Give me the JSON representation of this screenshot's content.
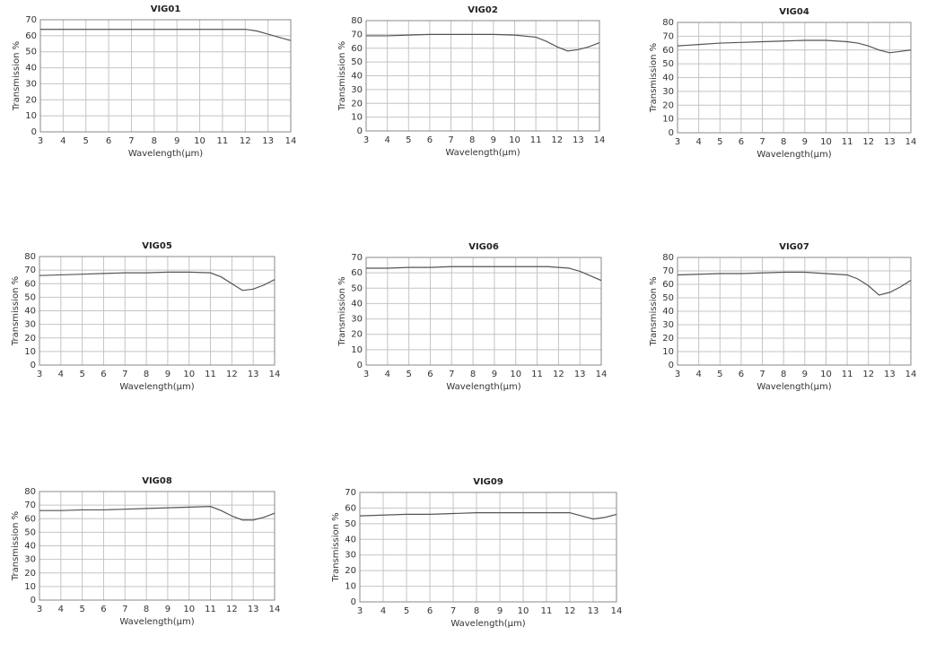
{
  "chart_data": [
    {
      "type": "line",
      "title": "VIG01",
      "xlabel": "Wavelength(μm)",
      "ylabel": "Transmission %",
      "x": [
        3,
        4,
        5,
        6,
        7,
        8,
        9,
        10,
        11,
        11.5,
        12,
        12.5,
        13,
        13.5,
        14
      ],
      "series": [
        {
          "color": "#555555",
          "values": [
            64,
            64,
            64,
            64,
            64,
            64,
            64,
            64,
            64,
            64,
            64,
            63,
            61,
            59,
            57
          ]
        }
      ],
      "xlim": [
        3,
        14
      ],
      "ylim": [
        0,
        70
      ],
      "xticks": [
        3,
        4,
        5,
        6,
        7,
        8,
        9,
        10,
        11,
        12,
        13,
        14
      ],
      "yticks": [
        0,
        10,
        20,
        30,
        40,
        50,
        60,
        70
      ],
      "grid": true
    },
    {
      "type": "line",
      "title": "VIG02",
      "xlabel": "Wavelength(μm)",
      "ylabel": "Transmission %",
      "x": [
        3,
        4,
        5,
        6,
        7,
        8,
        9,
        10,
        11,
        11.5,
        12,
        12.5,
        13,
        13.5,
        14
      ],
      "series": [
        {
          "color": "#555555",
          "values": [
            69,
            69,
            69.5,
            70,
            70,
            70,
            70,
            69.5,
            68,
            65,
            61,
            58,
            59,
            61,
            64
          ]
        }
      ],
      "xlim": [
        3,
        14
      ],
      "ylim": [
        0,
        80
      ],
      "xticks": [
        3,
        4,
        5,
        6,
        7,
        8,
        9,
        10,
        11,
        12,
        13,
        14
      ],
      "yticks": [
        0,
        10,
        20,
        30,
        40,
        50,
        60,
        70,
        80
      ],
      "grid": true
    },
    {
      "type": "line",
      "title": "VIG04",
      "xlabel": "Wavelength(μm)",
      "ylabel": "Transmission %",
      "x": [
        3,
        4,
        5,
        6,
        7,
        8,
        9,
        10,
        11,
        11.5,
        12,
        12.5,
        13,
        13.5,
        14
      ],
      "series": [
        {
          "color": "#555555",
          "values": [
            63,
            64,
            65,
            65.5,
            66,
            66.5,
            67,
            67,
            66,
            65,
            63,
            60,
            58,
            59,
            60
          ]
        }
      ],
      "xlim": [
        3,
        14
      ],
      "ylim": [
        0,
        80
      ],
      "xticks": [
        3,
        4,
        5,
        6,
        7,
        8,
        9,
        10,
        11,
        12,
        13,
        14
      ],
      "yticks": [
        0,
        10,
        20,
        30,
        40,
        50,
        60,
        70,
        80
      ],
      "grid": true
    },
    {
      "type": "line",
      "title": "VIG05",
      "xlabel": "Wavelength(μm)",
      "ylabel": "Transmission %",
      "x": [
        3,
        4,
        5,
        6,
        7,
        8,
        9,
        10,
        11,
        11.5,
        12,
        12.5,
        13,
        13.5,
        14
      ],
      "series": [
        {
          "color": "#555555",
          "values": [
            66,
            66.5,
            67,
            67.5,
            68,
            68,
            68.5,
            68.5,
            68,
            65,
            60,
            55,
            56,
            59,
            63
          ]
        }
      ],
      "xlim": [
        3,
        14
      ],
      "ylim": [
        0,
        80
      ],
      "xticks": [
        3,
        4,
        5,
        6,
        7,
        8,
        9,
        10,
        11,
        12,
        13,
        14
      ],
      "yticks": [
        0,
        10,
        20,
        30,
        40,
        50,
        60,
        70,
        80
      ],
      "grid": true
    },
    {
      "type": "line",
      "title": "VIG06",
      "xlabel": "Wavelength(μm)",
      "ylabel": "Transmission %",
      "x": [
        3,
        4,
        5,
        6,
        7,
        8,
        9,
        10,
        11,
        11.5,
        12,
        12.5,
        13,
        13.5,
        14
      ],
      "series": [
        {
          "color": "#555555",
          "values": [
            63,
            63,
            63.5,
            63.5,
            64,
            64,
            64,
            64,
            64,
            64,
            63.5,
            63,
            61,
            58,
            55
          ]
        }
      ],
      "xlim": [
        3,
        14
      ],
      "ylim": [
        0,
        70
      ],
      "xticks": [
        3,
        4,
        5,
        6,
        7,
        8,
        9,
        10,
        11,
        12,
        13,
        14
      ],
      "yticks": [
        0,
        10,
        20,
        30,
        40,
        50,
        60,
        70
      ],
      "grid": true
    },
    {
      "type": "line",
      "title": "VIG07",
      "xlabel": "Wavelength(μm)",
      "ylabel": "Transmission %",
      "x": [
        3,
        4,
        5,
        6,
        7,
        8,
        9,
        10,
        11,
        11.5,
        12,
        12.5,
        13,
        13.5,
        14
      ],
      "series": [
        {
          "color": "#555555",
          "values": [
            67,
            67.5,
            68,
            68,
            68.5,
            69,
            69,
            68,
            67,
            64,
            59,
            52,
            54,
            58,
            63
          ]
        }
      ],
      "xlim": [
        3,
        14
      ],
      "ylim": [
        0,
        80
      ],
      "xticks": [
        3,
        4,
        5,
        6,
        7,
        8,
        9,
        10,
        11,
        12,
        13,
        14
      ],
      "yticks": [
        0,
        10,
        20,
        30,
        40,
        50,
        60,
        70,
        80
      ],
      "grid": true
    },
    {
      "type": "line",
      "title": "VIG08",
      "xlabel": "Wavelength(μm)",
      "ylabel": "Transmission %",
      "x": [
        3,
        4,
        5,
        6,
        7,
        8,
        9,
        10,
        11,
        11.5,
        12,
        12.5,
        13,
        13.5,
        14
      ],
      "series": [
        {
          "color": "#555555",
          "values": [
            66,
            66,
            66.5,
            66.5,
            67,
            67.5,
            68,
            68.5,
            69,
            66,
            62,
            59,
            59,
            61,
            64
          ]
        }
      ],
      "xlim": [
        3,
        14
      ],
      "ylim": [
        0,
        80
      ],
      "xticks": [
        3,
        4,
        5,
        6,
        7,
        8,
        9,
        10,
        11,
        12,
        13,
        14
      ],
      "yticks": [
        0,
        10,
        20,
        30,
        40,
        50,
        60,
        70,
        80
      ],
      "grid": true
    },
    {
      "type": "line",
      "title": "VIG09",
      "xlabel": "Wavelength(μm)",
      "ylabel": "Transmission %",
      "x": [
        3,
        4,
        5,
        6,
        7,
        8,
        9,
        10,
        11,
        11.5,
        12,
        12.5,
        13,
        13.5,
        14
      ],
      "series": [
        {
          "color": "#555555",
          "values": [
            55,
            55.5,
            56,
            56,
            56.5,
            57,
            57,
            57,
            57,
            57,
            57,
            55,
            53,
            54,
            56
          ]
        }
      ],
      "xlim": [
        3,
        14
      ],
      "ylim": [
        0,
        70
      ],
      "xticks": [
        3,
        4,
        5,
        6,
        7,
        8,
        9,
        10,
        11,
        12,
        13,
        14
      ],
      "yticks": [
        0,
        10,
        20,
        30,
        40,
        50,
        60,
        70
      ],
      "grid": true
    }
  ]
}
